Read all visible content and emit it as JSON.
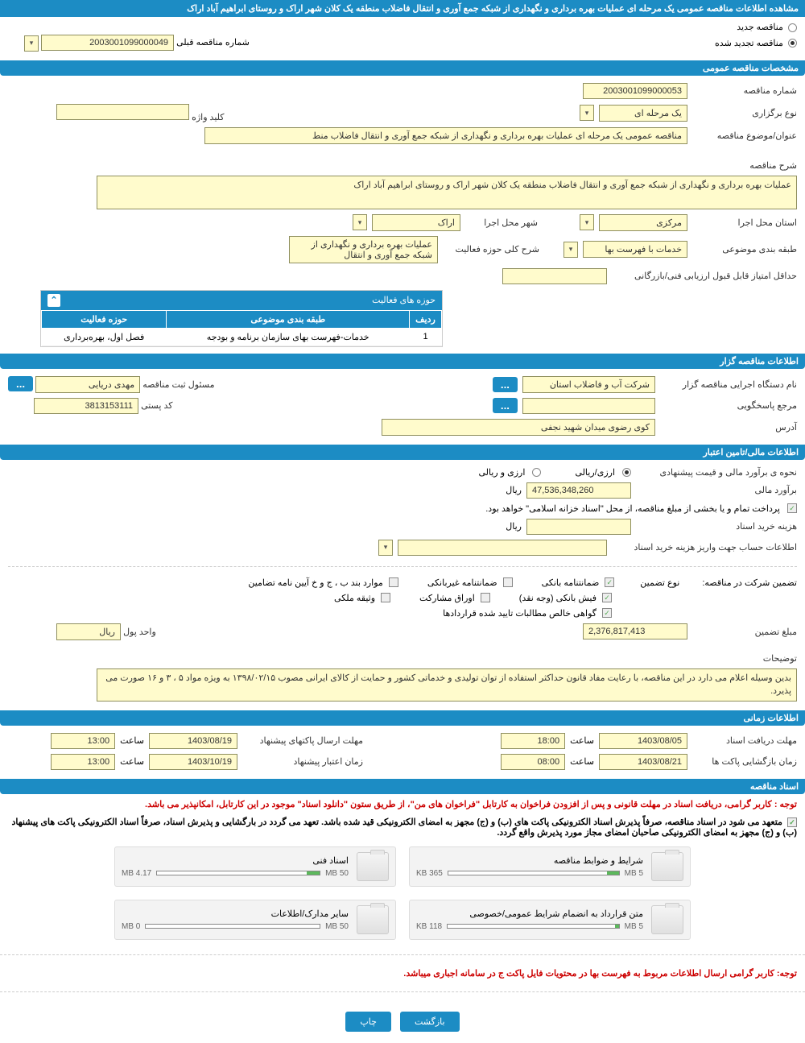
{
  "page_title": "مشاهده اطلاعات مناقصه عمومی یک مرحله ای عملیات بهره برداری و نگهداری از شبکه جمع آوری و انتقال فاضلاب منطقه یک کلان شهر اراک و روستای ابراهیم آباد اراک",
  "radio_new": "مناقصه جدید",
  "radio_renewed": "مناقصه تجدید شده",
  "prev_number_label": "شماره مناقصه قبلی",
  "prev_number": "2003001099000049",
  "sections": {
    "general": "مشخصات مناقصه عمومی",
    "organizer": "اطلاعات مناقصه گزار",
    "financial": "اطلاعات مالی/تامین اعتبار",
    "timing": "اطلاعات زمانی",
    "docs": "اسناد مناقصه"
  },
  "general": {
    "tender_no_label": "شماره مناقصه",
    "tender_no": "2003001099000053",
    "type_label": "نوع برگزاری",
    "type": "یک مرحله ای",
    "keyword_label": "کلید واژه",
    "keyword": "",
    "subject_label": "عنوان/موضوع مناقصه",
    "subject": "مناقصه عمومی یک مرحله ای عملیات بهره برداری و نگهداری از شبکه جمع آوری و انتقال فاضلاب منط",
    "desc_label": "شرح مناقصه",
    "desc": "عملیات بهره برداری و نگهداری از شبکه جمع آوری و انتقال فاضلاب منطقه یک کلان شهر اراک و روستای ابراهیم آباد اراک",
    "province_label": "استان محل اجرا",
    "province": "مرکزی",
    "city_label": "شهر محل اجرا",
    "city": "اراک",
    "category_label": "طبقه بندی موضوعی",
    "category": "خدمات با فهرست بها",
    "activity_label": "شرح کلی حوزه فعالیت",
    "activity": "عملیات بهره برداری و نگهداری از شبکه جمع آوری و انتقال",
    "min_score_label": "حداقل امتیاز قابل قبول ارزیابی فنی/بازرگانی",
    "min_score": "",
    "activity_table_title": "حوزه های فعالیت",
    "col_row": "ردیف",
    "col_cat": "طبقه بندی موضوعی",
    "col_act": "حوزه فعالیت",
    "tbl_row_no": "1",
    "tbl_cat": "خدمات-فهرست بهای سازمان برنامه و بودجه",
    "tbl_act": "فصل اول، بهره‌برداری"
  },
  "organizer": {
    "name_label": "نام دستگاه اجرایی مناقصه گزار",
    "name": "شرکت آب و فاضلاب استان",
    "responsible_label": "مسئول ثبت مناقصه",
    "responsible": "مهدی دریایی",
    "ref_label": "مرجع پاسخگویی",
    "ref": "",
    "postal_label": "کد پستی",
    "postal": "3813153111",
    "address_label": "آدرس",
    "address": "کوی رضوی میدان شهید نجفی"
  },
  "financial": {
    "method_label": "نحوه ی برآورد مالی و قیمت پیشنهادی",
    "method_opt1": "ارزی/ریالی",
    "method_opt2": "ارزی و ریالی",
    "estimate_label": "برآورد مالی",
    "estimate": "47,536,348,260",
    "currency": "ریال",
    "payment_note": "پرداخت تمام و یا بخشی از مبلغ مناقصه، از محل \"اسناد خزانه اسلامی\" خواهد بود.",
    "doc_cost_label": "هزینه خرید اسناد",
    "doc_cost": "",
    "account_label": "اطلاعات حساب جهت واریز هزینه خرید اسناد",
    "guarantee_title": "تضمین شرکت در مناقصه:",
    "guarantee_type_label": "نوع تضمین",
    "g_bank": "ضمانتنامه بانکی",
    "g_nonbank": "ضمانتنامه غیربانکی",
    "g_bond": "موارد بند ب ، ج و خ آیین نامه تضامین",
    "g_cash": "فیش بانکی (وجه نقد)",
    "g_securities": "اوراق مشارکت",
    "g_property": "وثیقه ملکی",
    "g_cert": "گواهی خالص مطالبات تایید شده قراردادها",
    "guarantee_amount_label": "مبلغ تضمین",
    "guarantee_amount": "2,376,817,413",
    "currency_unit_label": "واحد پول",
    "currency_unit": "ریال",
    "notes_label": "توضیحات",
    "notes": "بدین وسیله اعلام می دارد در این مناقصه، با رعایت مفاد قانون حداکثر استفاده از توان تولیدی و خدماتی کشور و حمایت از کالای ایرانی مصوب ۱۳۹۸/۰۲/۱۵ به ویژه مواد ۵ ، ۳ و ۱۶ صورت می پذیرد."
  },
  "timing": {
    "receive_label": "مهلت دریافت اسناد",
    "receive_date": "1403/08/05",
    "receive_time": "18:00",
    "submit_label": "مهلت ارسال پاکتهای پیشنهاد",
    "submit_date": "1403/08/19",
    "submit_time": "13:00",
    "open_label": "زمان بازگشایی پاکت ها",
    "open_date": "1403/08/21",
    "open_time": "08:00",
    "validity_label": "زمان اعتبار پیشنهاد",
    "validity_date": "1403/10/19",
    "validity_time": "13:00",
    "time_label": "ساعت"
  },
  "docs": {
    "note1": "توجه : کاربر گرامی، دریافت اسناد در مهلت قانونی و پس از افزودن فراخوان به کارتابل \"فراخوان های من\"، از طریق ستون \"دانلود اسناد\" موجود در این کارتابل، امکانپذیر می باشد.",
    "note2": "متعهد می شود در اسناد مناقصه، صرفاً پذیرش اسناد الکترونیکی پاکت های (ب) و (ج) مجهز به امضای الکترونیکی قید شده باشد. تعهد می گردد در بارگشایی و پذیرش اسناد، صرفاً اسناد الکترونیکی پاکت های پیشنهاد (ب) و (ج) مجهز به امضای الکترونیکی صاحبان امضای مجاز مورد پذیرش واقع گردد.",
    "note3": "توجه: کاربر گرامی ارسال اطلاعات مربوط به فهرست بها در محتویات فایل پاکت ج در سامانه اجباری میباشد.",
    "cards": [
      {
        "title": "شرایط و ضوابط مناقصه",
        "used": "365 KB",
        "total": "5 MB",
        "pct": 7
      },
      {
        "title": "اسناد فنی",
        "used": "MB 4.17",
        "total": "50 MB",
        "pct": 8
      },
      {
        "title": "متن قرارداد به انضمام شرایط عمومی/خصوصی",
        "used": "118 KB",
        "total": "5 MB",
        "pct": 2
      },
      {
        "title": "سایر مدارک/اطلاعات",
        "used": "0 MB",
        "total": "50 MB",
        "pct": 0
      }
    ]
  },
  "buttons": {
    "back": "بازگشت",
    "print": "چاپ"
  }
}
